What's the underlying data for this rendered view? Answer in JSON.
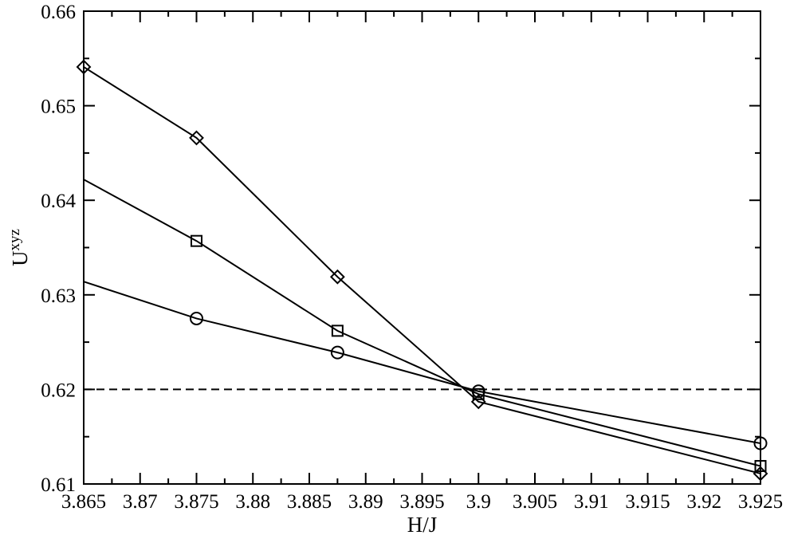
{
  "chart_data": {
    "type": "line",
    "xlabel": "H/J",
    "ylabel_main": "U",
    "ylabel_sup": "xyz",
    "xlim": [
      3.865,
      3.925
    ],
    "ylim": [
      0.61,
      0.66
    ],
    "xticks": [
      3.865,
      3.87,
      3.875,
      3.88,
      3.885,
      3.89,
      3.895,
      3.9,
      3.905,
      3.91,
      3.915,
      3.92,
      3.925
    ],
    "xtick_labels": [
      "3.865",
      "3.87",
      "3.875",
      "3.88",
      "3.885",
      "3.89",
      "3.895",
      "3.9",
      "3.905",
      "3.91",
      "3.915",
      "3.92",
      "3.925"
    ],
    "yticks": [
      0.61,
      0.62,
      0.63,
      0.64,
      0.65,
      0.66
    ],
    "ytick_labels": [
      "0.61",
      "0.62",
      "0.63",
      "0.64",
      "0.65",
      "0.66"
    ],
    "reference_line": {
      "y": 0.62,
      "style": "dashed"
    },
    "series": [
      {
        "marker": "circle",
        "points": [
          {
            "x": 3.865,
            "y": 0.6314,
            "marker": false
          },
          {
            "x": 3.875,
            "y": 0.6275,
            "marker": true
          },
          {
            "x": 3.8875,
            "y": 0.6239,
            "marker": true
          },
          {
            "x": 3.9,
            "y": 0.6198,
            "marker": true
          },
          {
            "x": 3.925,
            "y": 0.6143,
            "marker": true
          }
        ]
      },
      {
        "marker": "square",
        "points": [
          {
            "x": 3.865,
            "y": 0.6422,
            "marker": false
          },
          {
            "x": 3.875,
            "y": 0.6357,
            "marker": true
          },
          {
            "x": 3.8875,
            "y": 0.6262,
            "marker": true
          },
          {
            "x": 3.9,
            "y": 0.6195,
            "marker": true
          },
          {
            "x": 3.925,
            "y": 0.6119,
            "marker": true
          }
        ]
      },
      {
        "marker": "diamond",
        "points": [
          {
            "x": 3.865,
            "y": 0.6541,
            "marker": true
          },
          {
            "x": 3.875,
            "y": 0.6466,
            "marker": true
          },
          {
            "x": 3.8875,
            "y": 0.6319,
            "marker": true
          },
          {
            "x": 3.9,
            "y": 0.6187,
            "marker": true
          },
          {
            "x": 3.925,
            "y": 0.6111,
            "marker": true
          }
        ]
      }
    ],
    "grid": false,
    "legend": "none",
    "line_color": "#000000"
  }
}
